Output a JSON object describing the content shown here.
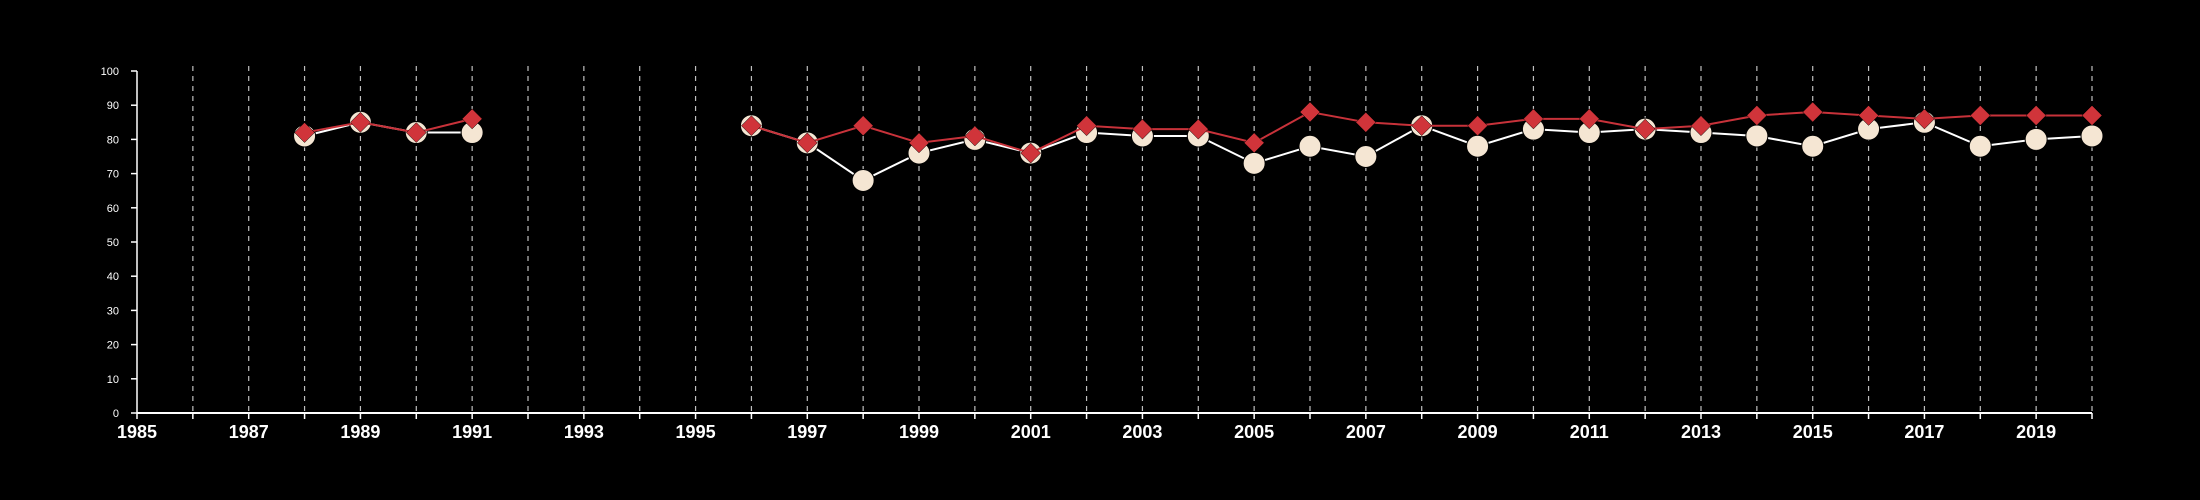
{
  "chart_data": {
    "type": "line",
    "title": "",
    "xlabel": "",
    "ylabel": "",
    "xlim": [
      1985,
      2020
    ],
    "ylim": [
      0,
      100
    ],
    "grid": "vertical dashed lines at each year",
    "legend": "none",
    "x_tick_labels": [
      "1985",
      "1987",
      "1989",
      "1991",
      "1993",
      "1995",
      "1997",
      "1999",
      "2001",
      "2003",
      "2005",
      "2007",
      "2009",
      "2011",
      "2013",
      "2015",
      "2017",
      "2019"
    ],
    "y_tick_labels": [
      "0",
      "10",
      "20",
      "30",
      "40",
      "50",
      "60",
      "70",
      "80",
      "90",
      "100"
    ],
    "series": [
      {
        "marker": "circle",
        "color": "#f5e6d3",
        "line_color": "#ffffff",
        "points": [
          [
            1988,
            81
          ],
          [
            1989,
            85
          ],
          [
            1990,
            82
          ],
          [
            1991,
            82
          ],
          [
            1996,
            84
          ],
          [
            1997,
            79
          ],
          [
            1998,
            68
          ],
          [
            1999,
            76
          ],
          [
            2000,
            80
          ],
          [
            2001,
            76
          ],
          [
            2002,
            82
          ],
          [
            2003,
            81
          ],
          [
            2004,
            81
          ],
          [
            2005,
            73
          ],
          [
            2006,
            78
          ],
          [
            2007,
            75
          ],
          [
            2008,
            84
          ],
          [
            2009,
            78
          ],
          [
            2010,
            83
          ],
          [
            2011,
            82
          ],
          [
            2012,
            83
          ],
          [
            2013,
            82
          ],
          [
            2014,
            81
          ],
          [
            2015,
            78
          ],
          [
            2016,
            83
          ],
          [
            2017,
            85
          ],
          [
            2018,
            78
          ],
          [
            2019,
            80
          ],
          [
            2020,
            81
          ]
        ]
      },
      {
        "marker": "diamond",
        "color": "#d0343a",
        "line_color": "#c8323a",
        "points": [
          [
            1988,
            82
          ],
          [
            1989,
            85
          ],
          [
            1990,
            82
          ],
          [
            1991,
            86
          ],
          [
            1996,
            84
          ],
          [
            1997,
            79
          ],
          [
            1998,
            84
          ],
          [
            1999,
            79
          ],
          [
            2000,
            81
          ],
          [
            2001,
            76
          ],
          [
            2002,
            84
          ],
          [
            2003,
            83
          ],
          [
            2004,
            83
          ],
          [
            2005,
            79
          ],
          [
            2006,
            88
          ],
          [
            2007,
            85
          ],
          [
            2008,
            84
          ],
          [
            2009,
            84
          ],
          [
            2010,
            86
          ],
          [
            2011,
            86
          ],
          [
            2012,
            83
          ],
          [
            2013,
            84
          ],
          [
            2014,
            87
          ],
          [
            2015,
            88
          ],
          [
            2016,
            87
          ],
          [
            2017,
            86
          ],
          [
            2018,
            87
          ],
          [
            2019,
            87
          ],
          [
            2020,
            87
          ]
        ]
      }
    ]
  }
}
